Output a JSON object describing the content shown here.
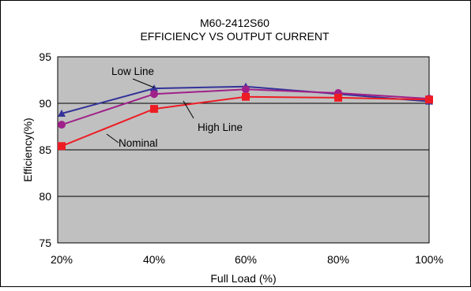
{
  "chart_data": {
    "type": "line",
    "title": "M60-2412S60",
    "subtitle": "EFFICIENCY VS OUTPUT CURRENT",
    "xlabel": "Full Load (%)",
    "ylabel": "Efficiency(%)",
    "categories": [
      "20%",
      "40%",
      "60%",
      "80%",
      "100%"
    ],
    "ylim": [
      75,
      95
    ],
    "yticks": [
      75,
      80,
      85,
      90,
      95
    ],
    "grid": "horizontal",
    "plot_background": "#c0c0c0",
    "series": [
      {
        "name": "Low Line",
        "color": "#333399",
        "marker": "triangle",
        "values": [
          88.9,
          91.6,
          91.8,
          91.0,
          90.2
        ]
      },
      {
        "name": "High Line",
        "color": "#a0208a",
        "marker": "circle",
        "values": [
          87.7,
          91.0,
          91.5,
          91.1,
          90.5
        ]
      },
      {
        "name": "Nominal",
        "color": "#ed1c24",
        "marker": "square",
        "values": [
          85.4,
          89.4,
          90.7,
          90.6,
          90.4
        ]
      }
    ]
  }
}
